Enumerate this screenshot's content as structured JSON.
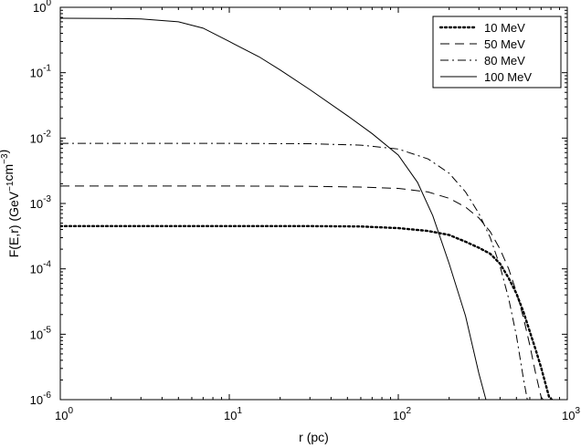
{
  "chart_data": {
    "type": "line",
    "title": "",
    "xlabel": "r (pc)",
    "ylabel": "F(E,r) (GeV−1cm−3)",
    "x_scale": "log",
    "y_scale": "log",
    "xlim": [
      1,
      1000
    ],
    "ylim": [
      1e-06,
      1
    ],
    "grid": false,
    "legend_position": "top-right",
    "x_ticks": [
      {
        "value": 1,
        "base": "10",
        "exp": "0"
      },
      {
        "value": 10,
        "base": "10",
        "exp": "1"
      },
      {
        "value": 100,
        "base": "10",
        "exp": "2"
      },
      {
        "value": 1000,
        "base": "10",
        "exp": "3"
      }
    ],
    "y_ticks": [
      {
        "value": 1,
        "base": "10",
        "exp": "0"
      },
      {
        "value": 0.1,
        "base": "10",
        "exp": "-1"
      },
      {
        "value": 0.01,
        "base": "10",
        "exp": "-2"
      },
      {
        "value": 0.001,
        "base": "10",
        "exp": "-3"
      },
      {
        "value": 0.0001,
        "base": "10",
        "exp": "-4"
      },
      {
        "value": 1e-05,
        "base": "10",
        "exp": "-5"
      },
      {
        "value": 1e-06,
        "base": "10",
        "exp": "-6"
      }
    ],
    "series": [
      {
        "name": "10 MeV",
        "style": "dotted",
        "color": "#000000",
        "x": [
          1,
          10,
          30,
          60,
          100,
          150,
          200,
          250,
          300,
          350,
          400,
          450,
          500,
          550,
          600,
          650,
          700,
          750,
          780,
          810
        ],
        "y": [
          0.00045,
          0.00045,
          0.00045,
          0.000445,
          0.00042,
          0.00038,
          0.00033,
          0.00026,
          0.00021,
          0.00017,
          0.00012,
          7.2e-05,
          4.2e-05,
          2.2e-05,
          1.1e-05,
          5.8e-06,
          3.1e-06,
          1.6e-06,
          1.1e-06,
          1e-06
        ]
      },
      {
        "name": "50 MeV",
        "style": "dashed",
        "color": "#000000",
        "x": [
          1,
          10,
          30,
          60,
          100,
          150,
          200,
          250,
          300,
          350,
          400,
          450,
          500,
          550,
          600,
          650,
          700,
          720
        ],
        "y": [
          0.00185,
          0.00185,
          0.00183,
          0.00178,
          0.0017,
          0.0015,
          0.0012,
          0.00088,
          0.0006,
          0.00037,
          0.0002,
          0.0001,
          4.4e-05,
          1.8e-05,
          6.8e-06,
          2.5e-06,
          1.1e-06,
          1e-06
        ]
      },
      {
        "name": "80 MeV",
        "style": "dashdot",
        "color": "#000000",
        "x": [
          1,
          10,
          30,
          60,
          100,
          150,
          200,
          250,
          300,
          350,
          400,
          450,
          500,
          550,
          580
        ],
        "y": [
          0.0083,
          0.0083,
          0.0082,
          0.0078,
          0.0068,
          0.0048,
          0.0029,
          0.0015,
          0.0007,
          0.0003,
          0.00011,
          3.5e-05,
          9.5e-06,
          2.1e-06,
          1e-06
        ]
      },
      {
        "name": "100 MeV",
        "style": "solid",
        "color": "#000000",
        "x": [
          1,
          2,
          3,
          5,
          7,
          10,
          15,
          20,
          30,
          50,
          70,
          100,
          130,
          160,
          200,
          250,
          300,
          330
        ],
        "y": [
          0.68,
          0.675,
          0.665,
          0.6,
          0.48,
          0.3,
          0.175,
          0.11,
          0.055,
          0.022,
          0.0117,
          0.0055,
          0.0021,
          0.00065,
          0.00012,
          1.9e-05,
          2.5e-06,
          1e-06
        ]
      }
    ]
  }
}
